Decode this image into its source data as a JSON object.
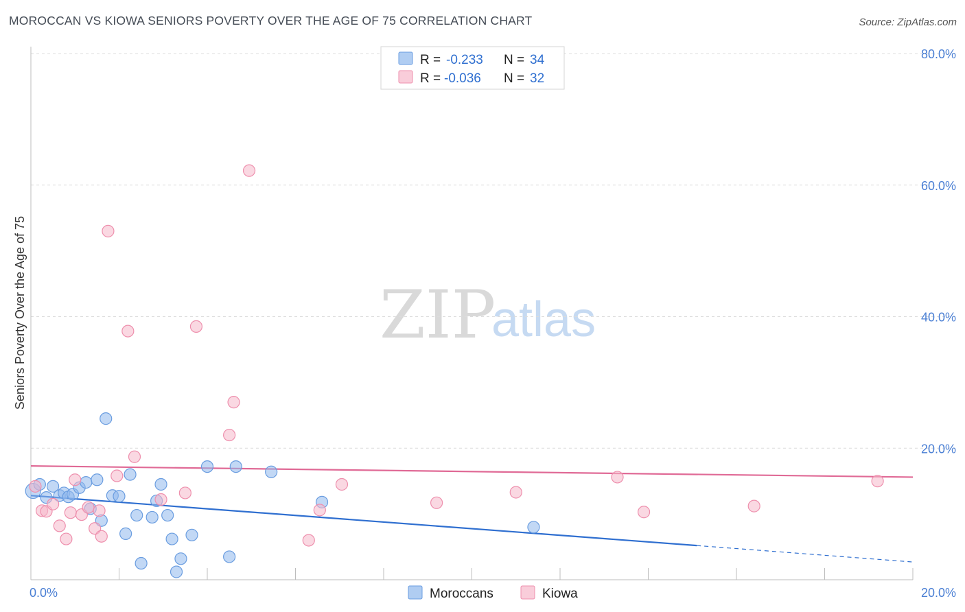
{
  "title": "MOROCCAN VS KIOWA SENIORS POVERTY OVER THE AGE OF 75 CORRELATION CHART",
  "source": "Source: ZipAtlas.com",
  "watermark": {
    "zip": "ZIP",
    "atlas": "atlas"
  },
  "chart_data": {
    "type": "scatter",
    "xlabel": "",
    "ylabel": "Seniors Poverty Over the Age of 75",
    "xlim": [
      0,
      20
    ],
    "ylim": [
      0,
      80
    ],
    "x_tick_labels": [
      "0.0%",
      "20.0%"
    ],
    "y_ticks": [
      20,
      40,
      60,
      80
    ],
    "y_tick_labels": [
      "20.0%",
      "40.0%",
      "60.0%",
      "80.0%"
    ],
    "grid": true,
    "legend": {
      "position": "top-center",
      "entries": [
        {
          "r_label": "R =",
          "r_value": "-0.233",
          "n_label": "N =",
          "n_value": "34"
        },
        {
          "r_label": "R =",
          "r_value": "-0.036",
          "n_label": "N =",
          "n_value": "32"
        }
      ]
    },
    "series": [
      {
        "name": "Moroccans",
        "color": "#8fb8ec",
        "stroke": "#6a9de0",
        "line_color": "#2f6fd0",
        "trend": {
          "x0": 0,
          "y0": 12.8,
          "x1": 15.1,
          "y1": 5.2,
          "dash_to_x": 20,
          "dash_to_y": 2.7
        },
        "points": [
          [
            0.05,
            13.5
          ],
          [
            0.2,
            14.5
          ],
          [
            0.35,
            12.5
          ],
          [
            0.5,
            14.2
          ],
          [
            0.65,
            12.8
          ],
          [
            0.75,
            13.2
          ],
          [
            0.85,
            12.6
          ],
          [
            0.95,
            13.0
          ],
          [
            1.1,
            14.0
          ],
          [
            1.25,
            14.8
          ],
          [
            1.35,
            10.8
          ],
          [
            1.5,
            15.2
          ],
          [
            1.6,
            9.0
          ],
          [
            1.7,
            24.5
          ],
          [
            1.85,
            12.8
          ],
          [
            2.0,
            12.7
          ],
          [
            2.15,
            7.0
          ],
          [
            2.25,
            16.0
          ],
          [
            2.4,
            9.8
          ],
          [
            2.5,
            2.5
          ],
          [
            2.75,
            9.5
          ],
          [
            2.85,
            12.0
          ],
          [
            2.95,
            14.5
          ],
          [
            3.1,
            9.8
          ],
          [
            3.2,
            6.2
          ],
          [
            3.3,
            1.2
          ],
          [
            3.4,
            3.2
          ],
          [
            3.65,
            6.8
          ],
          [
            4.0,
            17.2
          ],
          [
            4.5,
            3.5
          ],
          [
            4.65,
            17.2
          ],
          [
            5.45,
            16.4
          ],
          [
            6.6,
            11.8
          ],
          [
            11.4,
            8.0
          ]
        ]
      },
      {
        "name": "Kiowa",
        "color": "#f6b8cb",
        "stroke": "#ee8fad",
        "line_color": "#e06a96",
        "trend": {
          "x0": 0,
          "y0": 17.3,
          "x1": 20,
          "y1": 15.6
        },
        "points": [
          [
            0.1,
            14.2
          ],
          [
            0.25,
            10.5
          ],
          [
            0.35,
            10.4
          ],
          [
            0.5,
            11.5
          ],
          [
            0.65,
            8.2
          ],
          [
            0.8,
            6.2
          ],
          [
            0.9,
            10.2
          ],
          [
            1.0,
            15.2
          ],
          [
            1.15,
            9.9
          ],
          [
            1.3,
            11.0
          ],
          [
            1.45,
            7.8
          ],
          [
            1.55,
            10.5
          ],
          [
            1.6,
            6.6
          ],
          [
            1.75,
            53.0
          ],
          [
            1.95,
            15.8
          ],
          [
            2.2,
            37.8
          ],
          [
            2.35,
            18.7
          ],
          [
            2.95,
            12.2
          ],
          [
            3.5,
            13.2
          ],
          [
            3.75,
            38.5
          ],
          [
            4.5,
            22.0
          ],
          [
            4.6,
            27.0
          ],
          [
            4.95,
            62.2
          ],
          [
            6.3,
            6.0
          ],
          [
            6.55,
            10.6
          ],
          [
            7.05,
            14.5
          ],
          [
            9.2,
            11.7
          ],
          [
            11.0,
            13.3
          ],
          [
            13.3,
            15.6
          ],
          [
            13.9,
            10.3
          ],
          [
            16.4,
            11.2
          ],
          [
            19.2,
            15.0
          ]
        ]
      }
    ]
  }
}
